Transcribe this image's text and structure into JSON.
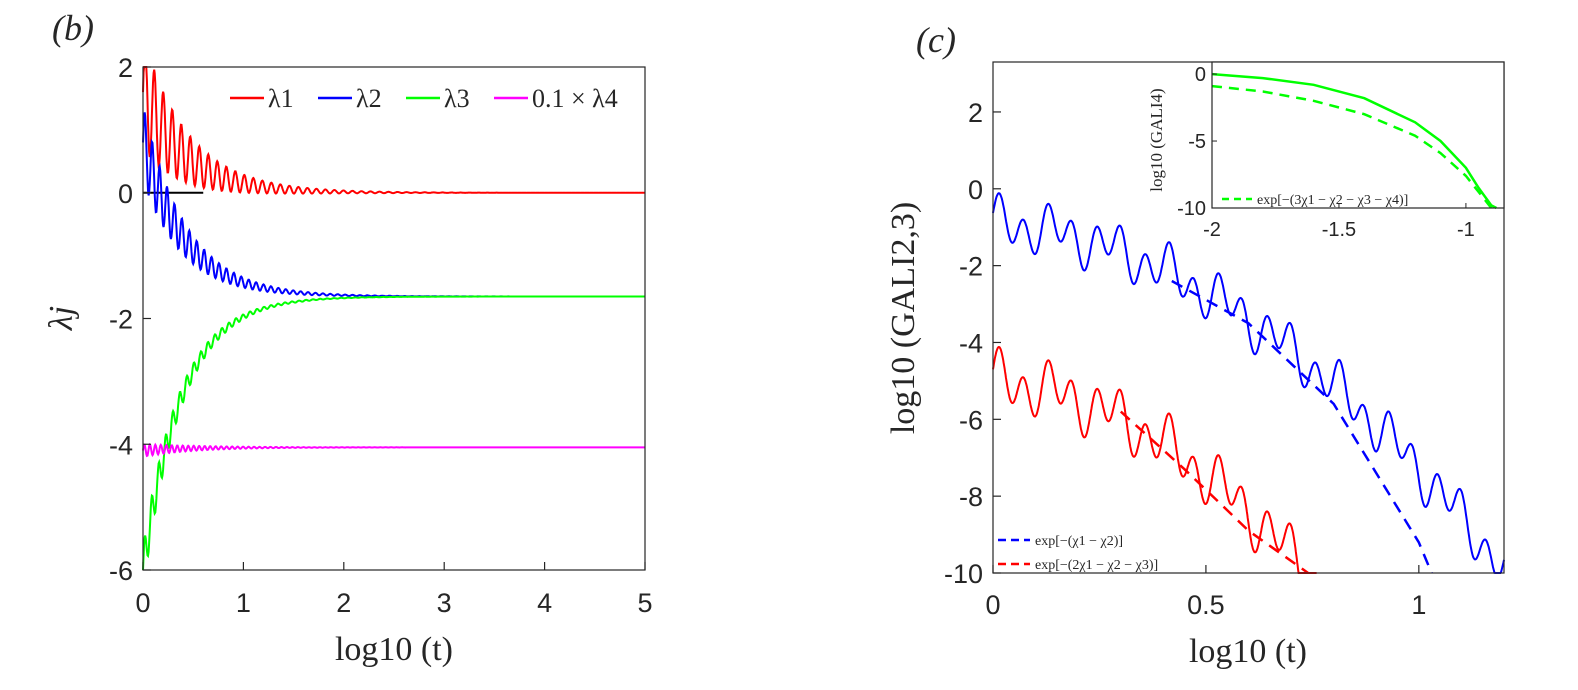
{
  "chart_data": [
    {
      "id": "b",
      "type": "line",
      "panel_label": "(b)",
      "xlabel": "log10 (t)",
      "ylabel": "λj",
      "xlim": [
        0,
        5
      ],
      "ylim": [
        -6,
        2
      ],
      "xticks": [
        0,
        1,
        2,
        3,
        4,
        5
      ],
      "xtick_labels": [
        "0",
        "1",
        "2",
        "3",
        "4",
        "5"
      ],
      "yticks": [
        2,
        0,
        -2,
        -4,
        -6
      ],
      "ytick_labels": [
        "2",
        "0",
        "-2",
        "-4",
        "-6"
      ],
      "legend_position": "top-right",
      "series": [
        {
          "name": "λ1",
          "color": "#ff0000",
          "final": 0.0,
          "start": 1.6,
          "osc": 0.9,
          "decay": 1.2
        },
        {
          "name": "λ2",
          "color": "#0000ff",
          "final": -1.65,
          "start": 0.8,
          "osc": 0.6,
          "decay": 1.1
        },
        {
          "name": "λ3",
          "color": "#00ff00",
          "final": -1.65,
          "start": -6.0,
          "osc": 0.35,
          "decay": 1.0
        },
        {
          "name": "0.1 × λ4",
          "color": "#ff00ff",
          "final": -4.05,
          "start": -4.1,
          "osc": 0.1,
          "decay": 1.2
        }
      ],
      "baseline": {
        "y": 0,
        "color": "#000000"
      }
    },
    {
      "id": "c",
      "type": "line",
      "panel_label": "(c)",
      "xlabel": "log10 (t)",
      "ylabel": "log10 (GALI2,3)",
      "xlim": [
        0,
        1.2
      ],
      "ylim": [
        -10,
        3.3
      ],
      "xticks": [
        0,
        0.5,
        1
      ],
      "xtick_labels": [
        "0",
        "0.5",
        "1"
      ],
      "yticks": [
        2,
        0,
        -2,
        -4,
        -6,
        -8,
        -10
      ],
      "ytick_labels": [
        "2",
        "0",
        "-2",
        "-4",
        "-6",
        "-8",
        "-10"
      ],
      "legend_position": "bottom-left",
      "series": [
        {
          "name": "GALI2",
          "color": "#0000ff",
          "style": "solid",
          "x_end": 1.2
        },
        {
          "name": "GALI3",
          "color": "#ff0000",
          "style": "solid",
          "x_end": 0.76
        },
        {
          "name": "exp[−(χ1 − χ2)]",
          "color": "#0000ff",
          "style": "dashed",
          "x": [
            0.42,
            0.6,
            0.8,
            1.0,
            1.03
          ],
          "y": [
            -2.4,
            -3.5,
            -5.6,
            -9.2,
            -10.0
          ]
        },
        {
          "name": "exp[−(2χ1 − χ2 − χ3)]",
          "color": "#ff0000",
          "style": "dashed",
          "x": [
            0.3,
            0.45,
            0.6,
            0.74
          ],
          "y": [
            -5.8,
            -7.3,
            -8.9,
            -10.0
          ]
        }
      ],
      "inset": {
        "xlabel": "",
        "ylabel": "log10 (GALI4)",
        "xlim": [
          -2,
          -0.85
        ],
        "ylim": [
          -10,
          0.9
        ],
        "xticks": [
          -2,
          -1.5,
          -1
        ],
        "xtick_labels": [
          "-2",
          "-1.5",
          "-1"
        ],
        "yticks": [
          0,
          -5,
          -10
        ],
        "ytick_labels": [
          "0",
          "-5",
          "-10"
        ],
        "legend_position": "bottom",
        "series": [
          {
            "name": "GALI4",
            "color": "#00ff00",
            "style": "solid",
            "x": [
              -2,
              -1.8,
              -1.6,
              -1.4,
              -1.2,
              -1.1,
              -1.0,
              -0.95,
              -0.9,
              -0.88
            ],
            "y": [
              0.0,
              -0.3,
              -0.8,
              -1.8,
              -3.6,
              -5.0,
              -7.0,
              -8.5,
              -9.8,
              -10.0
            ]
          },
          {
            "name": "exp[−(3χ1 − χ2 − χ3 − χ4)]",
            "color": "#00ff00",
            "style": "dashed",
            "x": [
              -2,
              -1.8,
              -1.6,
              -1.4,
              -1.2,
              -1.1,
              -1.0,
              -0.95,
              -0.9
            ],
            "y": [
              -0.9,
              -1.3,
              -2.0,
              -3.0,
              -4.6,
              -5.9,
              -7.6,
              -8.8,
              -10.0
            ]
          }
        ]
      }
    }
  ]
}
